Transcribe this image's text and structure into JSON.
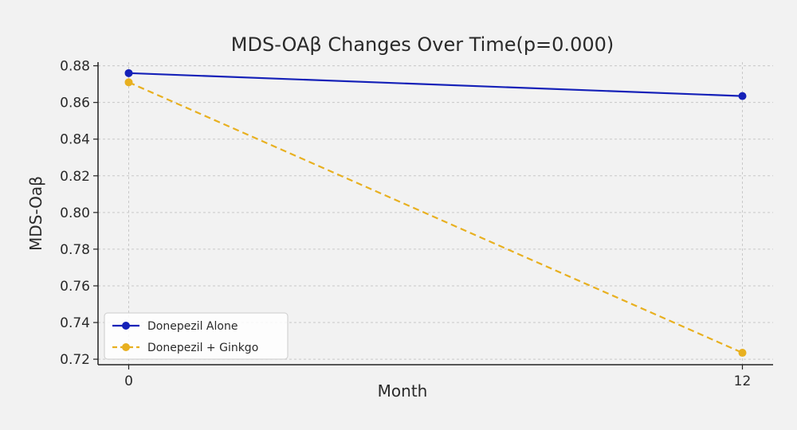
{
  "chart_data": {
    "type": "line",
    "title": "MDS-OAβ Changes Over Time(p=0.000)",
    "xlabel": "Month",
    "ylabel": "MDS-Oaβ",
    "x": [
      0,
      12
    ],
    "x_ticks": [
      "0",
      "12"
    ],
    "xlim": [
      -0.6,
      12.6
    ],
    "ylim": [
      0.717,
      0.882
    ],
    "y_ticks": [
      "0.72",
      "0.74",
      "0.76",
      "0.78",
      "0.80",
      "0.82",
      "0.84",
      "0.86",
      "0.88"
    ],
    "grid": true,
    "legend_position": "lower-left",
    "series": [
      {
        "name": "Donepezil Alone",
        "values": [
          0.876,
          0.8635
        ],
        "color": "#1521b8",
        "style": "solid"
      },
      {
        "name": "Donepezil + Ginkgo",
        "values": [
          0.871,
          0.7235
        ],
        "color": "#e8b020",
        "style": "dashed"
      }
    ]
  }
}
